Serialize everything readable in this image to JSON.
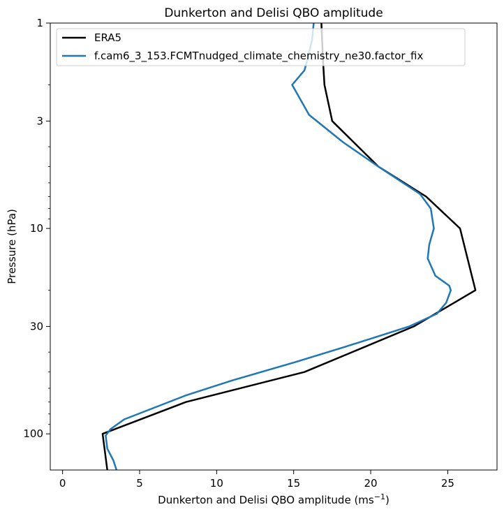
{
  "chart_data": {
    "type": "line",
    "title": "Dunkerton and Delisi QBO amplitude",
    "xlabel": "Dunkerton and Delisi QBO amplitude (ms",
    "xlabel_superscript": "−1",
    "xlabel_suffix": ")",
    "ylabel": "Pressure (hPa)",
    "xlim": [
      -0.8,
      28.2
    ],
    "ylim": [
      150,
      1
    ],
    "yscale": "log",
    "y_inverted": true,
    "grid": false,
    "legend_position": "top-left",
    "xticks": [
      0,
      5,
      10,
      15,
      20,
      25
    ],
    "xtick_labels": [
      "0",
      "5",
      "10",
      "15",
      "20",
      "25"
    ],
    "yticks": [
      1,
      3,
      10,
      30,
      100
    ],
    "ytick_labels": [
      "1",
      "3",
      "10",
      "30",
      "100"
    ],
    "series": [
      {
        "name": "ERA5",
        "color": "#000000",
        "points": [
          {
            "x": 16.8,
            "y": 1
          },
          {
            "x": 16.9,
            "y": 1.5
          },
          {
            "x": 17.0,
            "y": 2
          },
          {
            "x": 17.5,
            "y": 3
          },
          {
            "x": 20.5,
            "y": 5
          },
          {
            "x": 23.6,
            "y": 7
          },
          {
            "x": 25.8,
            "y": 10
          },
          {
            "x": 26.8,
            "y": 20
          },
          {
            "x": 22.8,
            "y": 30
          },
          {
            "x": 15.7,
            "y": 50
          },
          {
            "x": 8.0,
            "y": 70
          },
          {
            "x": 2.6,
            "y": 100
          },
          {
            "x": 2.9,
            "y": 150
          }
        ]
      },
      {
        "name": "f.cam6_3_153.FCMTnudged_climate_chemistry_ne30.factor_fix",
        "color": "#1f77b4",
        "points": [
          {
            "x": 16.3,
            "y": 1
          },
          {
            "x": 16.2,
            "y": 1.2
          },
          {
            "x": 15.9,
            "y": 1.5
          },
          {
            "x": 15.7,
            "y": 1.7
          },
          {
            "x": 14.9,
            "y": 2
          },
          {
            "x": 16.0,
            "y": 2.8
          },
          {
            "x": 18.2,
            "y": 3.8
          },
          {
            "x": 20.5,
            "y": 5
          },
          {
            "x": 23.2,
            "y": 6.8
          },
          {
            "x": 23.9,
            "y": 8
          },
          {
            "x": 24.1,
            "y": 10
          },
          {
            "x": 23.8,
            "y": 12
          },
          {
            "x": 23.7,
            "y": 14
          },
          {
            "x": 24.2,
            "y": 17
          },
          {
            "x": 25.1,
            "y": 19
          },
          {
            "x": 25.2,
            "y": 20
          },
          {
            "x": 24.9,
            "y": 23
          },
          {
            "x": 24.3,
            "y": 26
          },
          {
            "x": 22.5,
            "y": 30
          },
          {
            "x": 18.2,
            "y": 38
          },
          {
            "x": 15.0,
            "y": 45
          },
          {
            "x": 11.0,
            "y": 55
          },
          {
            "x": 8.0,
            "y": 65
          },
          {
            "x": 4.0,
            "y": 85
          },
          {
            "x": 3.1,
            "y": 95
          },
          {
            "x": 2.8,
            "y": 102
          },
          {
            "x": 2.9,
            "y": 118
          },
          {
            "x": 3.3,
            "y": 135
          },
          {
            "x": 3.5,
            "y": 150
          }
        ]
      }
    ]
  }
}
